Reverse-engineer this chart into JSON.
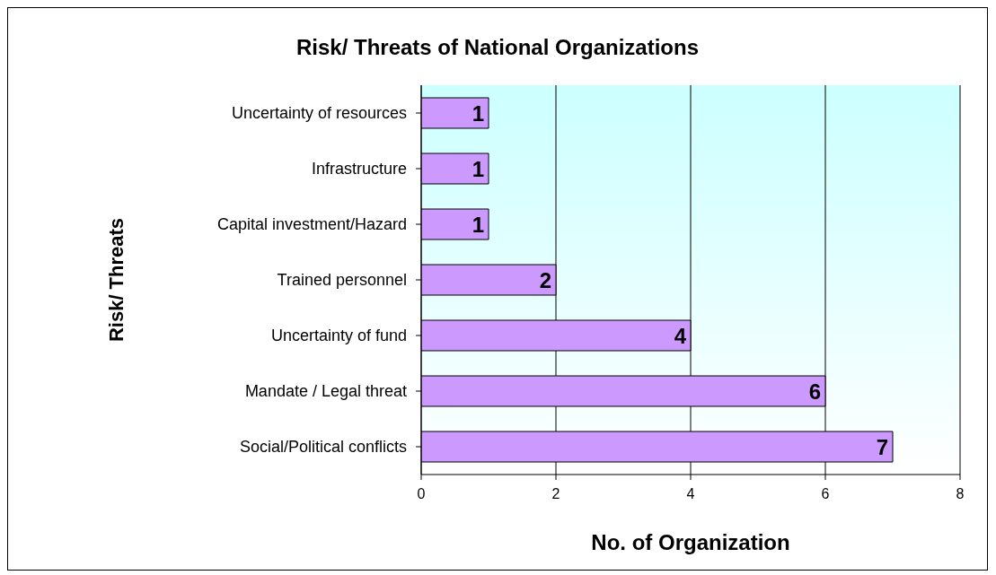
{
  "chart_data": {
    "type": "bar",
    "orientation": "horizontal",
    "title": "Risk/ Threats of National Organizations",
    "xlabel": "No. of Organization",
    "ylabel": "Risk/ Threats",
    "categories": [
      "Uncertainty of resources",
      "Infrastructure",
      "Capital investment/Hazard",
      "Trained personnel",
      "Uncertainty of fund",
      "Mandate / Legal threat",
      "Social/Political conflicts"
    ],
    "values": [
      1,
      1,
      1,
      2,
      4,
      6,
      7
    ],
    "color": "#cc99ff",
    "xlim": [
      0,
      8
    ],
    "xticks": [
      0,
      2,
      4,
      6,
      8
    ],
    "grid": "x",
    "data_labels": true
  }
}
